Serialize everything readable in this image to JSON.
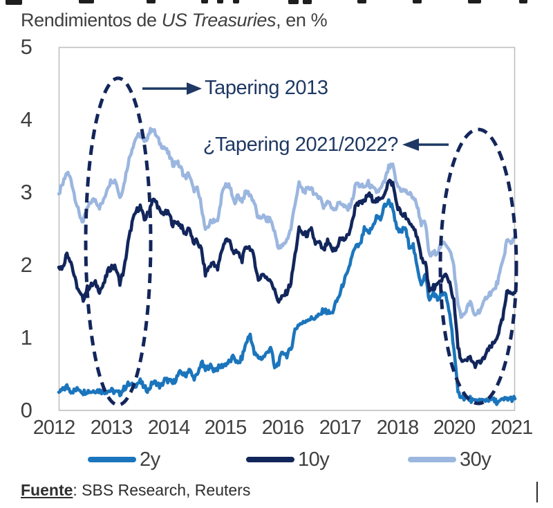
{
  "window": {
    "background": "#ffffff"
  },
  "title": {
    "prefix": "Rendimientos de ",
    "italic": "US Treasuries",
    "suffix": ", en %"
  },
  "footer": {
    "bold": "Fuente",
    "rest": ": SBS Research, Reuters"
  },
  "colors": {
    "axis_text": "#404040",
    "annotation_text": "#1F3864",
    "ellipse": "#13265B",
    "plot_border": "#BFBFBF",
    "series_2y": "#1B75BC",
    "series_10y": "#12265C",
    "series_30y": "#9BB6DF"
  },
  "chart_data": {
    "type": "line",
    "title": "Rendimientos de US Treasuries, en %",
    "xlabel": "",
    "ylabel": "",
    "ylim": [
      0,
      5
    ],
    "y_tick_labels": [
      "5",
      "4",
      "3",
      "2",
      "1",
      "0"
    ],
    "x_tick_labels": [
      "2012",
      "2013",
      "2014",
      "2015",
      "2016",
      "2017",
      "2018",
      "2020",
      "2021"
    ],
    "x_start": "2012-01",
    "x_end": "2021-05",
    "frequency": "monthly",
    "grid": false,
    "legend_position": "bottom",
    "annotations": [
      {
        "text": "Tapering 2013",
        "shape": "dashed-ellipse over 2013 yield rise",
        "arrow": "from ellipse pointing right at label"
      },
      {
        "text": "¿Tapering 2021/2022?",
        "shape": "dashed-ellipse over 2020-2021 trough and rebound",
        "arrow": "from ellipse pointing left at label"
      }
    ],
    "series": [
      {
        "name": "2y",
        "color": "#1B75BC",
        "values": [
          0.25,
          0.28,
          0.33,
          0.27,
          0.27,
          0.3,
          0.25,
          0.27,
          0.26,
          0.28,
          0.27,
          0.26,
          0.27,
          0.27,
          0.25,
          0.23,
          0.3,
          0.36,
          0.34,
          0.36,
          0.4,
          0.31,
          0.28,
          0.38,
          0.38,
          0.32,
          0.42,
          0.41,
          0.37,
          0.46,
          0.53,
          0.47,
          0.57,
          0.45,
          0.47,
          0.67,
          0.55,
          0.62,
          0.56,
          0.58,
          0.61,
          0.64,
          0.67,
          0.74,
          0.63,
          0.73,
          0.93,
          1.05,
          0.78,
          0.73,
          0.72,
          0.78,
          0.88,
          0.58,
          0.66,
          0.81,
          0.76,
          0.84,
          1.11,
          1.19,
          1.2,
          1.26,
          1.26,
          1.28,
          1.3,
          1.38,
          1.35,
          1.33,
          1.47,
          1.6,
          1.78,
          1.89,
          2.14,
          2.25,
          2.27,
          2.49,
          2.43,
          2.52,
          2.67,
          2.63,
          2.82,
          2.87,
          2.8,
          2.48,
          2.45,
          2.52,
          2.27,
          2.27,
          1.95,
          1.75,
          1.87,
          1.5,
          1.63,
          1.52,
          1.61,
          1.58,
          1.33,
          0.86,
          0.23,
          0.2,
          0.16,
          0.16,
          0.11,
          0.14,
          0.13,
          0.15,
          0.16,
          0.13,
          0.11,
          0.14,
          0.16,
          0.16,
          0.16
        ]
      },
      {
        "name": "10y",
        "color": "#12265C",
        "values": [
          1.97,
          1.97,
          2.17,
          2.05,
          1.8,
          1.62,
          1.53,
          1.68,
          1.72,
          1.75,
          1.65,
          1.72,
          1.91,
          1.98,
          1.96,
          1.76,
          1.93,
          2.3,
          2.58,
          2.74,
          2.81,
          2.62,
          2.72,
          2.9,
          2.86,
          2.71,
          2.72,
          2.71,
          2.56,
          2.6,
          2.54,
          2.42,
          2.53,
          2.3,
          2.33,
          2.21,
          1.88,
          1.98,
          2.04,
          1.94,
          2.2,
          2.36,
          2.32,
          2.17,
          2.17,
          2.07,
          2.26,
          2.24,
          2.09,
          1.78,
          1.89,
          1.81,
          1.81,
          1.64,
          1.5,
          1.56,
          1.63,
          1.76,
          2.14,
          2.49,
          2.43,
          2.42,
          2.48,
          2.3,
          2.3,
          2.19,
          2.32,
          2.21,
          2.2,
          2.36,
          2.35,
          2.4,
          2.58,
          2.86,
          2.84,
          2.87,
          2.98,
          2.91,
          2.89,
          2.89,
          3.0,
          3.15,
          3.12,
          2.83,
          2.71,
          2.68,
          2.57,
          2.53,
          2.4,
          2.07,
          2.06,
          1.63,
          1.7,
          1.71,
          1.81,
          1.86,
          1.76,
          1.5,
          0.87,
          0.66,
          0.67,
          0.73,
          0.62,
          0.65,
          0.68,
          0.79,
          0.87,
          0.93,
          1.08,
          1.26,
          1.61,
          1.64,
          1.62
        ]
      },
      {
        "name": "30y",
        "color": "#9BB6DF",
        "values": [
          2.98,
          3.11,
          3.28,
          3.18,
          2.93,
          2.7,
          2.59,
          2.77,
          2.88,
          2.9,
          2.8,
          2.88,
          3.08,
          3.17,
          3.16,
          2.93,
          3.11,
          3.4,
          3.61,
          3.76,
          3.79,
          3.68,
          3.8,
          3.89,
          3.77,
          3.66,
          3.62,
          3.52,
          3.39,
          3.42,
          3.33,
          3.2,
          3.26,
          3.04,
          3.04,
          2.83,
          2.46,
          2.57,
          2.63,
          2.59,
          2.96,
          3.11,
          3.07,
          2.86,
          2.95,
          2.89,
          3.01,
          2.97,
          2.86,
          2.62,
          2.68,
          2.62,
          2.63,
          2.45,
          2.23,
          2.26,
          2.35,
          2.5,
          2.86,
          3.11,
          3.02,
          3.03,
          3.08,
          2.94,
          2.96,
          2.8,
          2.88,
          2.8,
          2.78,
          2.88,
          2.8,
          2.77,
          2.88,
          3.13,
          3.09,
          3.07,
          3.13,
          3.05,
          3.01,
          3.04,
          3.15,
          3.34,
          3.36,
          3.1,
          3.04,
          3.02,
          2.98,
          2.94,
          2.82,
          2.57,
          2.57,
          2.12,
          2.16,
          2.19,
          2.28,
          2.3,
          2.22,
          1.97,
          1.46,
          1.27,
          1.38,
          1.49,
          1.31,
          1.36,
          1.42,
          1.57,
          1.62,
          1.66,
          1.82,
          2.04,
          2.34,
          2.3,
          2.4
        ]
      }
    ]
  }
}
